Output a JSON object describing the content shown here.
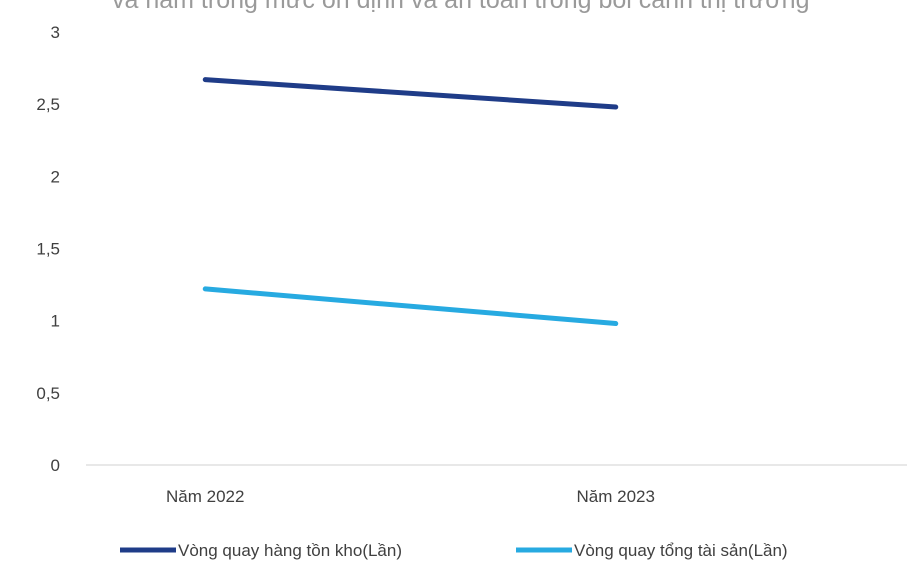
{
  "top_clipped_text": "và năm trong mức ổn định và an toàn trong bối cảnh thị trường",
  "chart_data": {
    "type": "line",
    "categories": [
      "Năm 2022",
      "Năm 2023"
    ],
    "series": [
      {
        "name": "Vòng quay hàng tồn kho(Lần)",
        "values": [
          2.67,
          2.48
        ],
        "color": "#1f3c88"
      },
      {
        "name": "Vòng quay tổng tài sản(Lần)",
        "values": [
          1.22,
          0.98
        ],
        "color": "#27aae1"
      }
    ],
    "yticks": [
      "0",
      "0,5",
      "1",
      "1,5",
      "2",
      "2,5",
      "3"
    ],
    "ylim": [
      0,
      3
    ],
    "grid": false,
    "legend": "bottom",
    "axis_color": "#d9d9d9",
    "text_color": "#404040"
  }
}
